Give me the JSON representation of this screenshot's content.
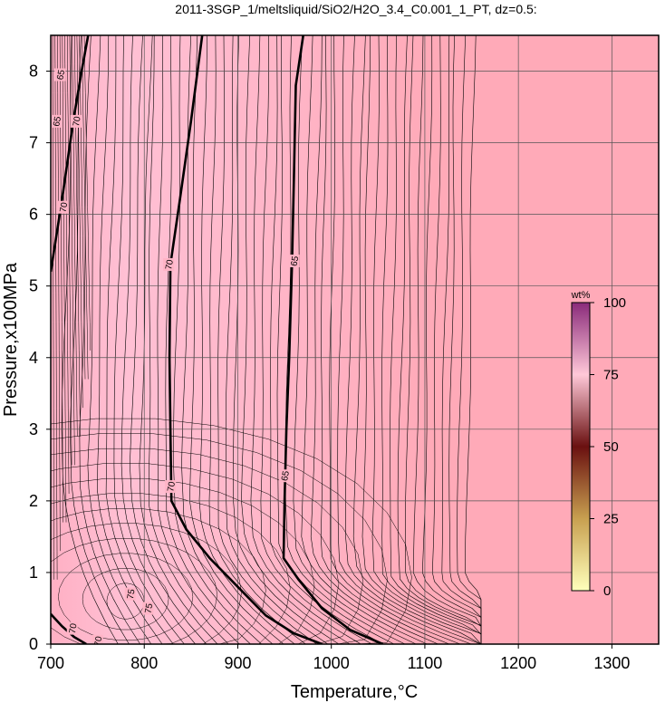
{
  "chart_data": {
    "type": "contour",
    "title": "2011-3SGP_1/meltsliquid/SiO2/H2O_3.4_C0.001_1_PT, dz=0.5:",
    "xlabel": "Temperature,°C",
    "ylabel": "Pressure,x100MPa",
    "xlim": [
      700,
      1350
    ],
    "ylim": [
      0,
      8.5
    ],
    "xticks": [
      700,
      800,
      900,
      1000,
      1100,
      1200,
      1300
    ],
    "yticks": [
      0,
      1,
      2,
      3,
      4,
      5,
      6,
      7,
      8
    ],
    "grid": true,
    "background_fill": "#ffaab8",
    "low_t_fill": "#ffbcd0",
    "colorbar": {
      "title": "wt%",
      "ticks": [
        0,
        25,
        50,
        75,
        100
      ],
      "range": [
        0,
        100
      ]
    },
    "contour_labels": [
      {
        "text": "65",
        "x": 710,
        "y": 7.95
      },
      {
        "text": "65",
        "x": 706,
        "y": 7.3
      },
      {
        "text": "70",
        "x": 727,
        "y": 7.3
      },
      {
        "text": "70",
        "x": 713,
        "y": 6.1
      },
      {
        "text": "70",
        "x": 826,
        "y": 5.3
      },
      {
        "text": "65",
        "x": 960,
        "y": 5.35
      },
      {
        "text": "70",
        "x": 828,
        "y": 2.2
      },
      {
        "text": "65",
        "x": 950,
        "y": 2.35
      },
      {
        "text": "70",
        "x": 723,
        "y": 0.22
      },
      {
        "text": "70",
        "x": 750,
        "y": 0.04
      },
      {
        "text": "75",
        "x": 785,
        "y": 0.7
      },
      {
        "text": "75",
        "x": 804,
        "y": 0.5
      }
    ],
    "bold_contours": [
      {
        "level": 70,
        "points": [
          [
            700,
            5.2
          ],
          [
            712,
            6.2
          ],
          [
            724,
            7.3
          ],
          [
            733,
            8.0
          ],
          [
            740,
            8.5
          ]
        ]
      },
      {
        "level": 70,
        "points": [
          [
            862,
            8.5
          ],
          [
            850,
            7.3
          ],
          [
            838,
            6.2
          ],
          [
            828,
            5.3
          ],
          [
            827,
            4.0
          ],
          [
            828,
            3.0
          ],
          [
            829,
            2.0
          ],
          [
            845,
            1.6
          ],
          [
            870,
            1.2
          ],
          [
            900,
            0.8
          ],
          [
            930,
            0.4
          ],
          [
            960,
            0.15
          ],
          [
            990,
            0
          ]
        ]
      },
      {
        "level": 65,
        "points": [
          [
            970,
            8.5
          ],
          [
            962,
            7.8
          ],
          [
            960,
            6.5
          ],
          [
            958,
            5.3
          ],
          [
            955,
            4.0
          ],
          [
            952,
            3.0
          ],
          [
            950,
            2.0
          ],
          [
            949,
            1.2
          ],
          [
            965,
            0.9
          ],
          [
            990,
            0.5
          ],
          [
            1020,
            0.2
          ],
          [
            1055,
            0
          ]
        ]
      },
      {
        "level": 70,
        "points": [
          [
            700,
            0.42
          ],
          [
            712,
            0.25
          ],
          [
            725,
            0.1
          ],
          [
            738,
            0
          ]
        ]
      }
    ],
    "thin_contour_region": {
      "tmin": 700,
      "tmax": 1160
    }
  }
}
